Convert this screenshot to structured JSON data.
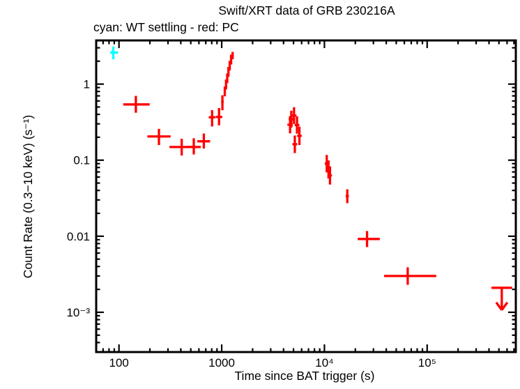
{
  "title": "Swift/XRT data of GRB 230216A",
  "subtitle": "cyan: WT settling - red: PC",
  "chart_data": {
    "type": "scatter",
    "title": "Swift/XRT data of GRB 230216A",
    "subtitle": "cyan: WT settling - red: PC",
    "xlabel": "Time since BAT trigger (s)",
    "ylabel": "Count Rate (0.3−10 keV) (s⁻¹)",
    "xscale": "log",
    "yscale": "log",
    "xlim": [
      60,
      730000
    ],
    "ylim": [
      0.0003,
      3.75
    ],
    "x_ticks": [
      100,
      1000,
      10000,
      100000
    ],
    "x_tick_labels": [
      "100",
      "1000",
      "10⁴",
      "10⁵"
    ],
    "y_ticks": [
      1,
      0.1,
      0.01,
      0.001
    ],
    "y_tick_labels": [
      "1",
      "0.1",
      "0.01",
      "10⁻³"
    ],
    "grid": false,
    "legend": "in subtitle",
    "colors": {
      "wt_settling": "#00ffff",
      "pc": "#ff0000",
      "text": "#000000"
    },
    "series": [
      {
        "name": "WT settling",
        "color": "#00ffff",
        "points": [
          {
            "t": 88,
            "tlo": 82,
            "thi": 98,
            "r": 2.6,
            "rlo": 2.12,
            "rhi": 3.12
          }
        ]
      },
      {
        "name": "PC",
        "color": "#ff0000",
        "points": [
          {
            "t": 146,
            "tlo": 110,
            "thi": 199,
            "r": 0.54,
            "rlo": 0.42,
            "rhi": 0.7
          },
          {
            "t": 245,
            "tlo": 189,
            "thi": 318,
            "r": 0.205,
            "rlo": 0.158,
            "rhi": 0.258
          },
          {
            "t": 408,
            "tlo": 310,
            "thi": 522,
            "r": 0.149,
            "rlo": 0.115,
            "rhi": 0.191
          },
          {
            "t": 535,
            "tlo": 458,
            "thi": 625,
            "r": 0.149,
            "rlo": 0.119,
            "rhi": 0.194
          },
          {
            "t": 670,
            "tlo": 579,
            "thi": 771,
            "r": 0.177,
            "rlo": 0.142,
            "rhi": 0.224
          },
          {
            "t": 806,
            "tlo": 748,
            "thi": 868,
            "r": 0.366,
            "rlo": 0.277,
            "rhi": 0.455
          },
          {
            "t": 942,
            "tlo": 875,
            "thi": 1014,
            "r": 0.37,
            "rlo": 0.287,
            "rhi": 0.485
          },
          {
            "t": 1016,
            "tlo": 988,
            "thi": 1046,
            "r": 0.586,
            "rlo": 0.453,
            "rhi": 0.713
          },
          {
            "t": 1072,
            "tlo": 1052,
            "thi": 1092,
            "r": 0.8,
            "rlo": 0.69,
            "rhi": 0.93
          },
          {
            "t": 1102,
            "tlo": 1082,
            "thi": 1122,
            "r": 0.99,
            "rlo": 0.85,
            "rhi": 1.15
          },
          {
            "t": 1132,
            "tlo": 1112,
            "thi": 1152,
            "r": 1.19,
            "rlo": 1.03,
            "rhi": 1.38
          },
          {
            "t": 1163,
            "tlo": 1143,
            "thi": 1183,
            "r": 1.45,
            "rlo": 1.25,
            "rhi": 1.68
          },
          {
            "t": 1197,
            "tlo": 1177,
            "thi": 1217,
            "r": 1.75,
            "rlo": 1.51,
            "rhi": 2.03
          },
          {
            "t": 1235,
            "tlo": 1215,
            "thi": 1256,
            "r": 2.1,
            "rlo": 1.81,
            "rhi": 2.44
          },
          {
            "t": 1278,
            "tlo": 1257,
            "thi": 1300,
            "r": 2.45,
            "rlo": 2.12,
            "rhi": 2.65
          },
          {
            "t": 4630,
            "tlo": 4360,
            "thi": 4920,
            "r": 0.292,
            "rlo": 0.225,
            "rhi": 0.38
          },
          {
            "t": 4760,
            "tlo": 4490,
            "thi": 5050,
            "r": 0.346,
            "rlo": 0.268,
            "rhi": 0.447
          },
          {
            "t": 5060,
            "tlo": 4790,
            "thi": 5350,
            "r": 0.385,
            "rlo": 0.299,
            "rhi": 0.497
          },
          {
            "t": 5150,
            "tlo": 4880,
            "thi": 5440,
            "r": 0.162,
            "rlo": 0.124,
            "rhi": 0.211
          },
          {
            "t": 5410,
            "tlo": 5140,
            "thi": 5700,
            "r": 0.29,
            "rlo": 0.223,
            "rhi": 0.377
          },
          {
            "t": 5710,
            "tlo": 5420,
            "thi": 6010,
            "r": 0.209,
            "rlo": 0.158,
            "rhi": 0.276
          },
          {
            "t": 10540,
            "tlo": 10080,
            "thi": 11020,
            "r": 0.09,
            "rlo": 0.069,
            "rhi": 0.117
          },
          {
            "t": 10960,
            "tlo": 10480,
            "thi": 11460,
            "r": 0.0755,
            "rlo": 0.0575,
            "rhi": 0.099
          },
          {
            "t": 11330,
            "tlo": 10840,
            "thi": 11840,
            "r": 0.063,
            "rlo": 0.0478,
            "rhi": 0.0829
          },
          {
            "t": 16700,
            "tlo": 16100,
            "thi": 17300,
            "r": 0.0336,
            "rlo": 0.0272,
            "rhi": 0.0414
          },
          {
            "t": 26000,
            "tlo": 21100,
            "thi": 34600,
            "r": 0.0092,
            "rlo": 0.0072,
            "rhi": 0.0117
          },
          {
            "t": 64700,
            "tlo": 38100,
            "thi": 122600,
            "r": 0.003,
            "rlo": 0.0023,
            "rhi": 0.0039
          }
        ]
      },
      {
        "name": "PC upper limit",
        "color": "#ff0000",
        "upper_limits": [
          {
            "t": 533000,
            "tlo": 423000,
            "thi": 672000,
            "r": 0.0021,
            "arrow_tip": 0.00107
          }
        ]
      }
    ]
  }
}
